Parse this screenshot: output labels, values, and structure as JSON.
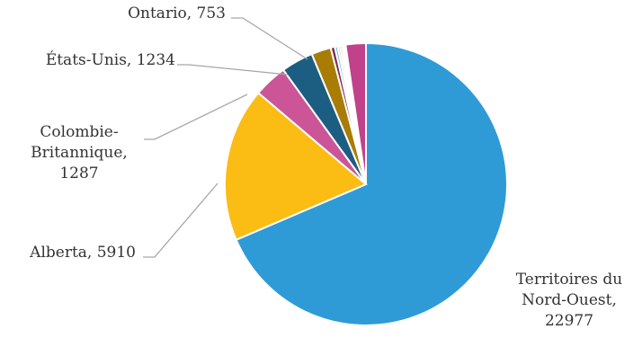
{
  "chart_data": {
    "type": "pie",
    "title": "",
    "start_angle_deg": 0,
    "direction": "clockwise",
    "slices": [
      {
        "name": "Territoires du Nord-Ouest",
        "value": 22977,
        "color": "#2e9bd6",
        "label_lines": [
          "Territoires du",
          "Nord-Ouest,",
          "22977"
        ]
      },
      {
        "name": "Alberta",
        "value": 5910,
        "color": "#fbbc14",
        "label_lines": [
          "Alberta, 5910"
        ]
      },
      {
        "name": "Colombie-Britannique",
        "value": 1287,
        "color": "#cc5598",
        "label_lines": [
          "Colombie-",
          "Britannique,",
          "1287"
        ]
      },
      {
        "name": "États-Unis",
        "value": 1234,
        "color": "#1c5d82",
        "label_lines": [
          "États-Unis, 1234"
        ]
      },
      {
        "name": "Ontario",
        "value": 753,
        "color": "#a97c06",
        "label_lines": [
          "Ontario, 753"
        ]
      },
      {
        "name": "",
        "value": 160,
        "color": "#7a2c55",
        "label_lines": []
      },
      {
        "name": "",
        "value": 110,
        "color": "#66bde9",
        "label_lines": []
      },
      {
        "name": "",
        "value": 95,
        "color": "#fdd46a",
        "label_lines": []
      },
      {
        "name": "",
        "value": 80,
        "color": "#e08fbd",
        "label_lines": []
      },
      {
        "name": "",
        "value": 70,
        "color": "#6fa6c6",
        "label_lines": []
      },
      {
        "name": "",
        "value": 60,
        "color": "#d0ad57",
        "label_lines": []
      },
      {
        "name": "",
        "value": 775,
        "color": "#c1418b",
        "label_lines": []
      }
    ]
  }
}
